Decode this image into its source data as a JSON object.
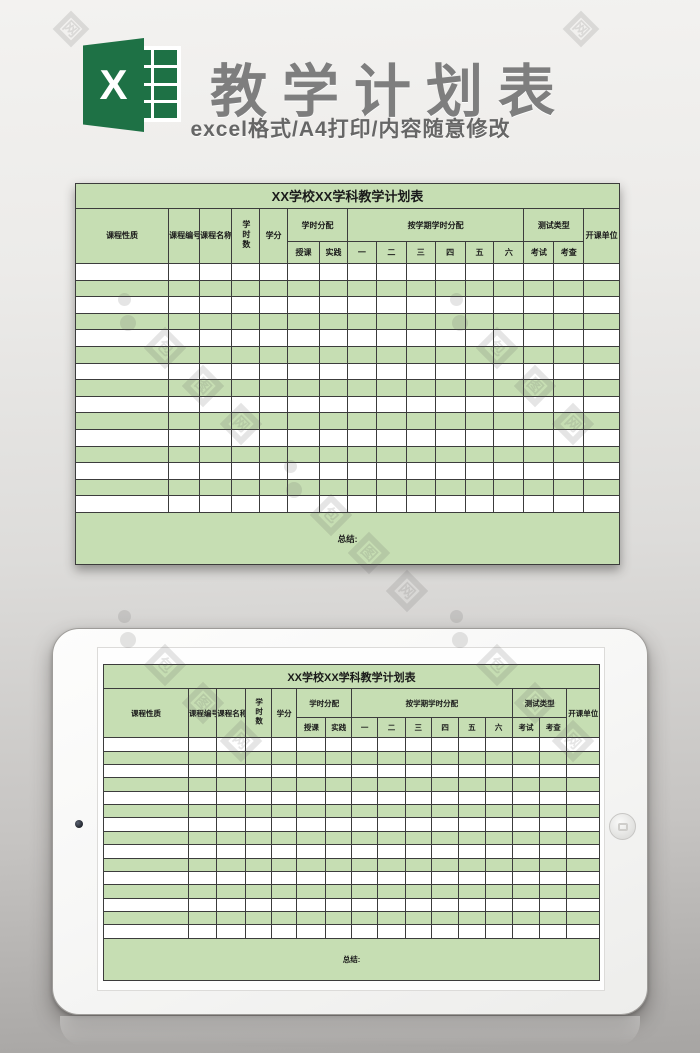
{
  "header": {
    "product_title": "教学计划表",
    "product_subtitle": "excel格式/A4打印/内容随意修改",
    "excel_logo_letter": "X",
    "excel_green": "#1e7145"
  },
  "spreadsheet": {
    "table_title": "XX学校XX学科教学计划表",
    "header_row_1": {
      "course_nature": "课程性质",
      "course_code": "课程编号",
      "course_name": "课程名称",
      "total_hours": "学时数",
      "credits": "学分",
      "hours_allocation": "学时分配",
      "semester_hours_allocation": "按学期学时分配",
      "test_type": "测试类型",
      "offering_unit": "开课单位"
    },
    "header_row_2": {
      "lecture": "授课",
      "practice": "实践",
      "semesters": [
        "一",
        "二",
        "三",
        "四",
        "五",
        "六"
      ],
      "exam": "考试",
      "assessment": "考查"
    },
    "summary_label": "总结:",
    "body_rows_main": 15,
    "body_rows_tablet": 15,
    "body_cells_per_row": 16,
    "colors": {
      "green": "#c6deb3",
      "row_white": "#ffffff",
      "grid_line": "#3c3c3c"
    }
  },
  "watermark": {
    "site_chars": [
      "包",
      "图",
      "网"
    ]
  }
}
